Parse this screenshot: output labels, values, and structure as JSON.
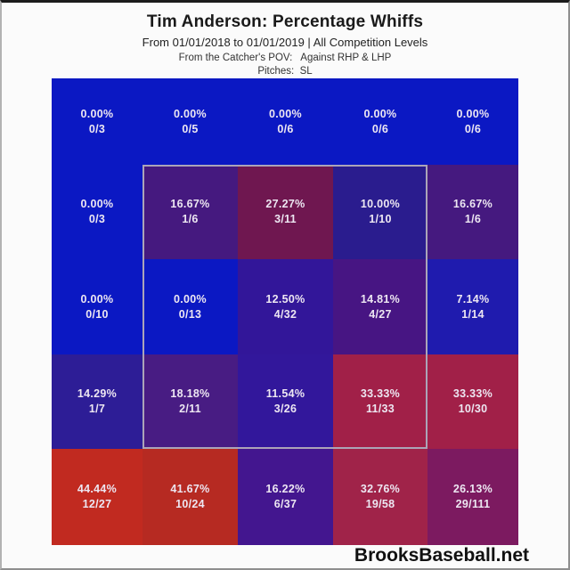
{
  "header": {
    "title": "Tim Anderson: Percentage Whiffs",
    "subtitle1": "From 01/01/2018 to 01/01/2019 | All Competition Levels",
    "subtitle2": "From the Catcher's POV:   Against RHP & LHP",
    "subtitle3": "Pitches:  SL"
  },
  "footer": {
    "brand": "BrooksBaseball.net"
  },
  "chart_data": {
    "type": "heatmap",
    "title": "Tim Anderson: Percentage Whiffs",
    "date_range": "01/01/2018 to 01/01/2019",
    "competition": "All Competition Levels",
    "view": "From the Catcher's POV",
    "against": "RHP & LHP",
    "pitches": "SL",
    "rows": 5,
    "cols": 5,
    "strike_zone": {
      "row_start": 1,
      "row_end": 3,
      "col_start": 1,
      "col_end": 3,
      "border_color": "#aba4b8"
    },
    "grid": [
      [
        {
          "pct": "0.00%",
          "frac": "0/3",
          "color": "#0b18c3"
        },
        {
          "pct": "0.00%",
          "frac": "0/5",
          "color": "#0b18c3"
        },
        {
          "pct": "0.00%",
          "frac": "0/6",
          "color": "#0b18c3"
        },
        {
          "pct": "0.00%",
          "frac": "0/6",
          "color": "#0b18c3"
        },
        {
          "pct": "0.00%",
          "frac": "0/6",
          "color": "#0b18c3"
        }
      ],
      [
        {
          "pct": "0.00%",
          "frac": "0/3",
          "color": "#0b18c3"
        },
        {
          "pct": "16.67%",
          "frac": "1/6",
          "color": "#45197f"
        },
        {
          "pct": "27.27%",
          "frac": "3/11",
          "color": "#6f1750"
        },
        {
          "pct": "10.00%",
          "frac": "1/10",
          "color": "#2a1c8e"
        },
        {
          "pct": "16.67%",
          "frac": "1/6",
          "color": "#45197f"
        }
      ],
      [
        {
          "pct": "0.00%",
          "frac": "0/10",
          "color": "#0b18c3"
        },
        {
          "pct": "0.00%",
          "frac": "0/13",
          "color": "#0b18c3"
        },
        {
          "pct": "12.50%",
          "frac": "4/32",
          "color": "#321699"
        },
        {
          "pct": "14.81%",
          "frac": "4/27",
          "color": "#471583"
        },
        {
          "pct": "7.14%",
          "frac": "1/14",
          "color": "#1f1bae"
        }
      ],
      [
        {
          "pct": "14.29%",
          "frac": "1/7",
          "color": "#2d1d96"
        },
        {
          "pct": "18.18%",
          "frac": "2/11",
          "color": "#481c83"
        },
        {
          "pct": "11.54%",
          "frac": "3/26",
          "color": "#32179b"
        },
        {
          "pct": "33.33%",
          "frac": "11/33",
          "color": "#a12048"
        },
        {
          "pct": "33.33%",
          "frac": "10/30",
          "color": "#a12048"
        }
      ],
      [
        {
          "pct": "44.44%",
          "frac": "12/27",
          "color": "#c12a20"
        },
        {
          "pct": "41.67%",
          "frac": "10/24",
          "color": "#b62a22"
        },
        {
          "pct": "16.22%",
          "frac": "6/37",
          "color": "#43168f"
        },
        {
          "pct": "32.76%",
          "frac": "19/58",
          "color": "#a02349"
        },
        {
          "pct": "26.13%",
          "frac": "29/111",
          "color": "#7c1a60"
        }
      ]
    ]
  }
}
